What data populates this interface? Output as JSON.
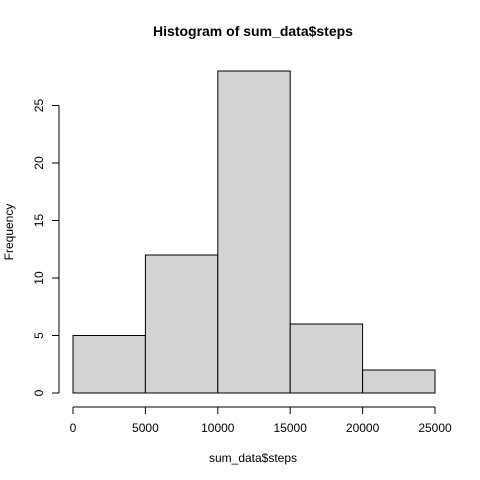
{
  "chart_data": {
    "type": "bar",
    "title": "Histogram of sum_data$steps",
    "xlabel": "sum_data$steps",
    "ylabel": "Frequency",
    "bins": [
      {
        "start": 0,
        "end": 5000,
        "count": 5
      },
      {
        "start": 5000,
        "end": 10000,
        "count": 12
      },
      {
        "start": 10000,
        "end": 15000,
        "count": 28
      },
      {
        "start": 15000,
        "end": 20000,
        "count": 6
      },
      {
        "start": 20000,
        "end": 25000,
        "count": 2
      }
    ],
    "x_ticks": [
      0,
      5000,
      10000,
      15000,
      20000,
      25000
    ],
    "y_ticks": [
      0,
      5,
      10,
      15,
      20,
      25
    ],
    "xlim": [
      0,
      25000
    ],
    "ylim": [
      0,
      28
    ],
    "grid": false,
    "legend": "none",
    "bar_fill": "#d3d3d3",
    "bar_stroke": "#000000"
  }
}
